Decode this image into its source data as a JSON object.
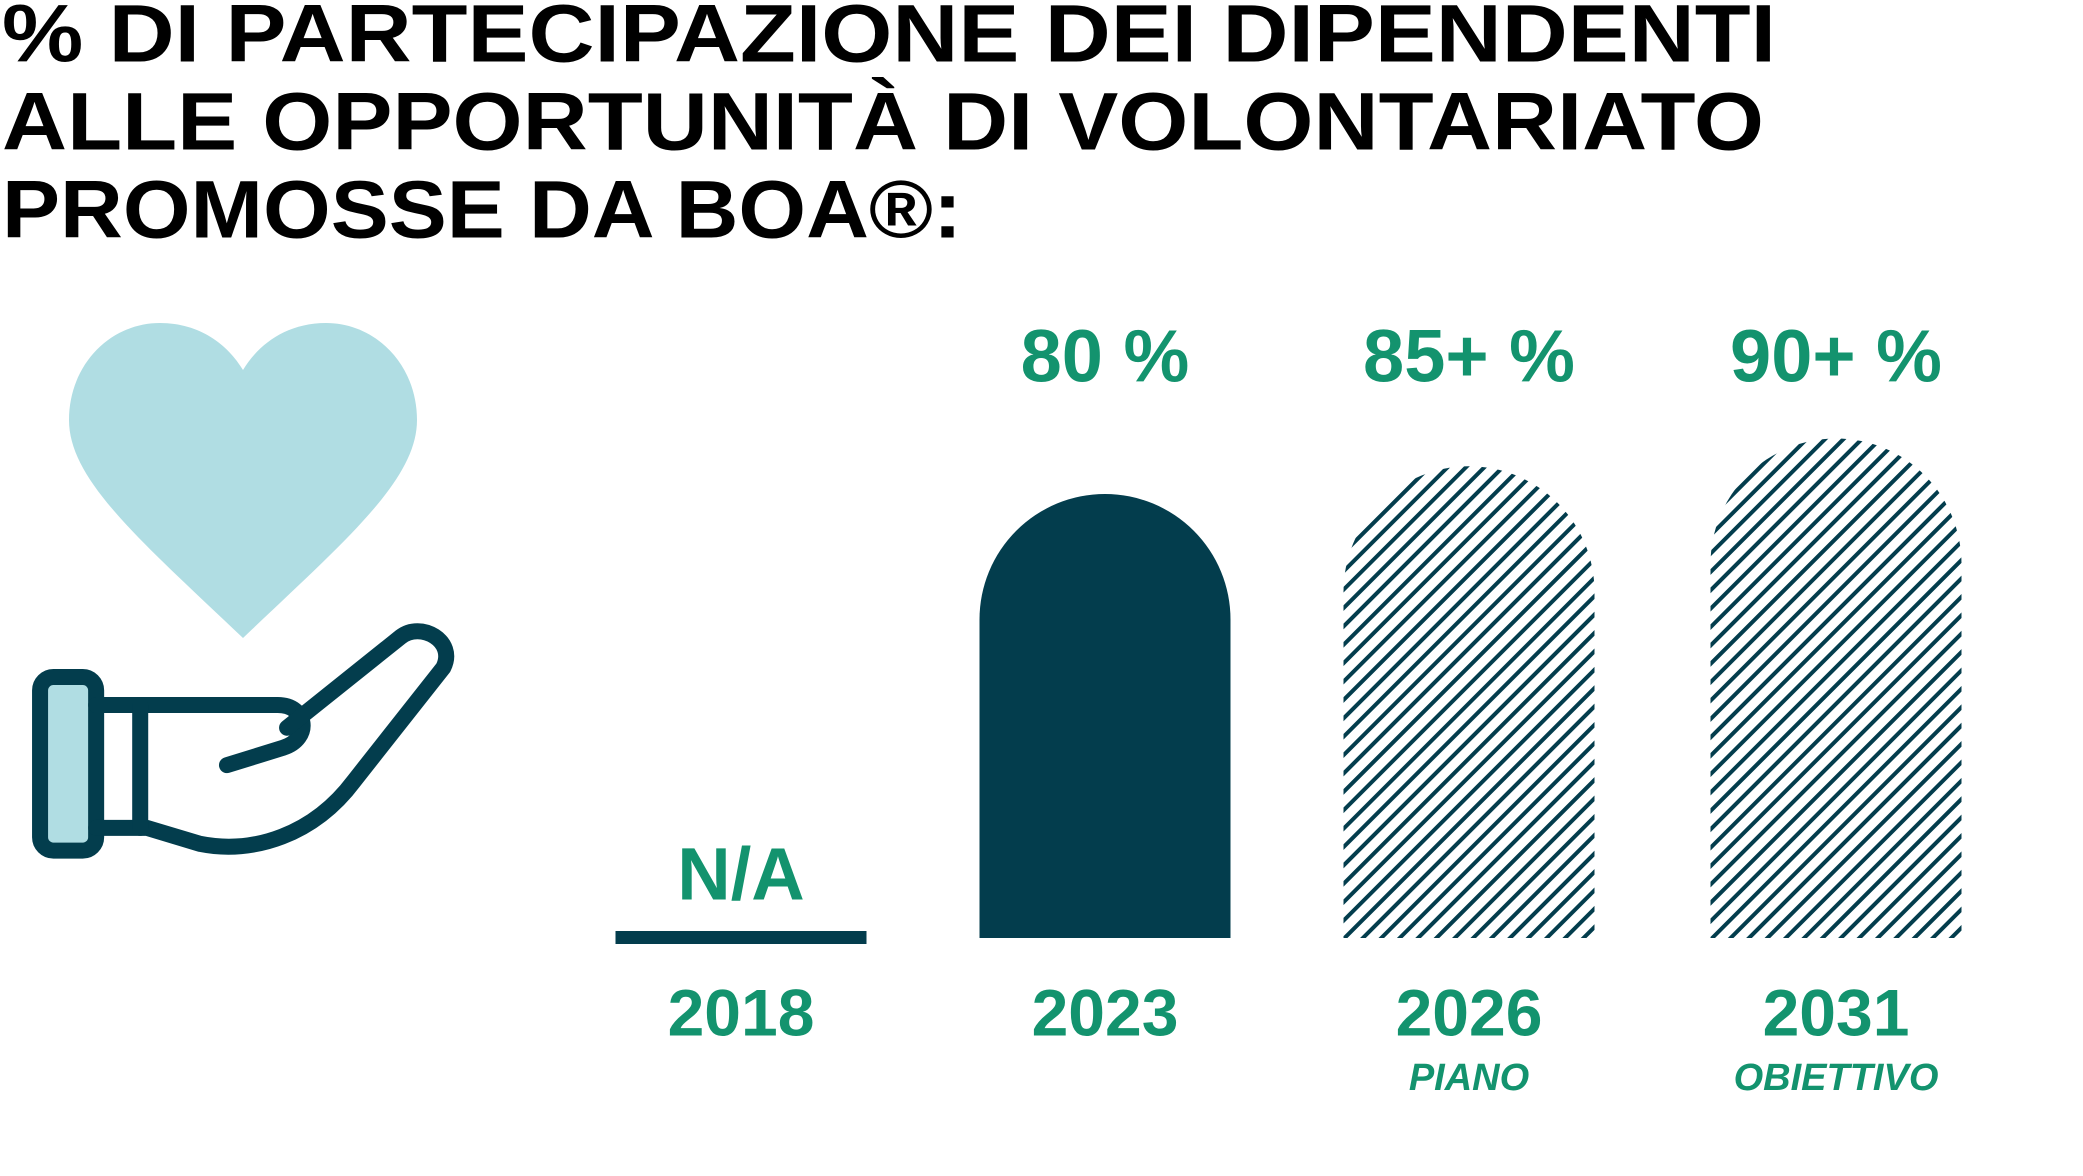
{
  "chart_data": {
    "type": "bar",
    "title": [
      "% DI PARTECIPAZIONE DEI DIPENDENTI",
      "ALLE OPPORTUNITÀ DI VOLONTARIATO",
      "PROMOSSE DA BOA®:"
    ],
    "categories": [
      "2018",
      "2023",
      "2026",
      "2031"
    ],
    "category_notes": [
      null,
      null,
      "PIANO",
      "OBIETTIVO"
    ],
    "values": [
      null,
      80,
      85,
      90
    ],
    "value_labels": [
      "N/A",
      "80 %",
      "85+ %",
      "90+ %"
    ],
    "hatched": [
      false,
      false,
      true,
      true
    ],
    "color": "#033d4d",
    "label_color": "#13936e"
  }
}
